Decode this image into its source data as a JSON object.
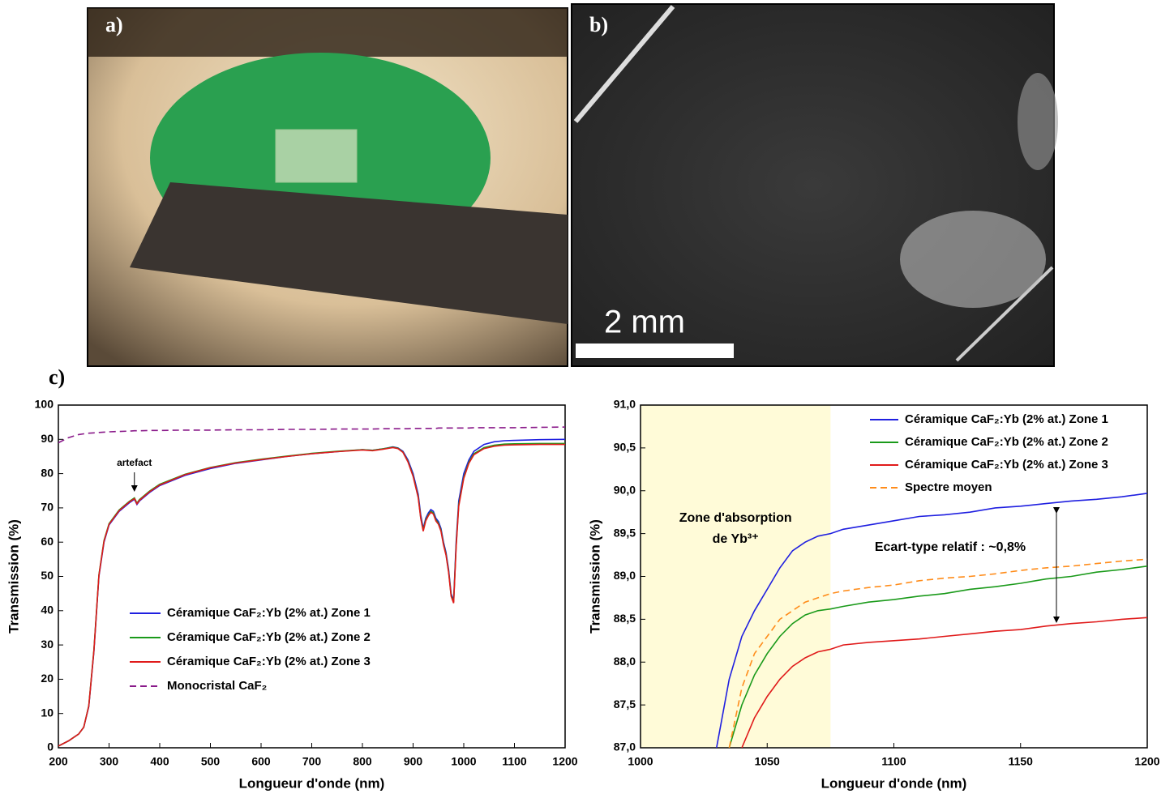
{
  "panels": {
    "a": "a)",
    "b": "b)",
    "c": "c)",
    "scale_bar": "2 mm"
  },
  "chart_data": [
    {
      "type": "line",
      "xlabel": "Longueur d'onde (nm)",
      "ylabel": "Transmission (%)",
      "x": [
        200,
        220,
        240,
        250,
        260,
        270,
        280,
        290,
        300,
        320,
        340,
        350,
        355,
        360,
        380,
        400,
        450,
        500,
        550,
        600,
        650,
        700,
        750,
        800,
        820,
        840,
        860,
        870,
        880,
        890,
        900,
        910,
        915,
        920,
        925,
        930,
        935,
        940,
        945,
        950,
        955,
        960,
        965,
        970,
        975,
        980,
        985,
        990,
        1000,
        1010,
        1020,
        1040,
        1060,
        1080,
        1100,
        1150,
        1200
      ],
      "xlim": [
        200,
        1200
      ],
      "xticks": [
        200,
        300,
        400,
        500,
        600,
        700,
        800,
        900,
        1000,
        1100,
        1200
      ],
      "ylim": [
        0,
        100
      ],
      "yticks": [
        0,
        10,
        20,
        30,
        40,
        50,
        60,
        70,
        80,
        90,
        100
      ],
      "legend": "lower-left",
      "annotation": "artefact",
      "series": [
        {
          "name": "Céramique CaF₂:Yb (2% at.) Zone 1",
          "color": "#1f1fe0",
          "style": "solid",
          "values": [
            0.5,
            2,
            4,
            6,
            12,
            28,
            50,
            60,
            65,
            69,
            71.5,
            72.5,
            71,
            72,
            74.5,
            76.5,
            79.5,
            81.5,
            83,
            84,
            85,
            85.8,
            86.4,
            87,
            86.8,
            87.2,
            87.8,
            87.5,
            86.5,
            84,
            80,
            74,
            68,
            64,
            67,
            68.5,
            69.5,
            69,
            67,
            66,
            64,
            60,
            57,
            52,
            45,
            43,
            60,
            72,
            80,
            84,
            86.5,
            88.5,
            89.3,
            89.6,
            89.7,
            89.9,
            90
          ]
        },
        {
          "name": "Céramique CaF₂:Yb (2% at.) Zone 2",
          "color": "#1a9a1a",
          "style": "solid",
          "values": [
            0.5,
            2,
            4,
            6,
            12.3,
            28.5,
            50.5,
            60.5,
            65.4,
            69.4,
            71.9,
            72.9,
            71.4,
            72.4,
            74.9,
            76.9,
            79.8,
            81.8,
            83.2,
            84.2,
            85.1,
            85.9,
            86.5,
            87,
            86.8,
            87.2,
            87.7,
            87.4,
            86.3,
            83.6,
            79.4,
            73.3,
            67.2,
            63.5,
            66.5,
            68,
            69,
            68.5,
            66.5,
            65.5,
            63.5,
            59.5,
            56.5,
            51.5,
            44.5,
            42.5,
            59,
            71,
            79,
            83.3,
            85.8,
            87.6,
            88.3,
            88.6,
            88.7,
            88.8,
            88.8
          ]
        },
        {
          "name": "Céramique CaF₂:Yb (2% at.) Zone 3",
          "color": "#e01a1a",
          "style": "solid",
          "values": [
            0.5,
            2,
            4,
            6,
            12.2,
            28.3,
            50.3,
            60.3,
            65.2,
            69.2,
            71.7,
            72.7,
            71.2,
            72.2,
            74.7,
            76.7,
            79.7,
            81.7,
            83.1,
            84.1,
            85,
            85.8,
            86.4,
            86.9,
            86.7,
            87.1,
            87.6,
            87.3,
            86.2,
            83.4,
            79.2,
            73,
            67,
            63.2,
            66.2,
            67.7,
            68.7,
            68.2,
            66.2,
            65.2,
            63.2,
            59.2,
            56.2,
            51.2,
            44.2,
            42.2,
            58.5,
            70.5,
            78.6,
            83,
            85.5,
            87.3,
            88,
            88.3,
            88.4,
            88.5,
            88.5
          ]
        },
        {
          "name": "Monocristal CaF₂",
          "color": "#8a1a8a",
          "style": "dashed",
          "values": [
            89,
            90.5,
            91.4,
            91.6,
            91.8,
            91.9,
            92,
            92.1,
            92.2,
            92.3,
            92.4,
            92.5,
            92.5,
            92.5,
            92.6,
            92.6,
            92.7,
            92.7,
            92.8,
            92.8,
            92.9,
            92.9,
            93,
            93,
            93,
            93.1,
            93.1,
            93.1,
            93.1,
            93.1,
            93.2,
            93.2,
            93.2,
            93.2,
            93.2,
            93.2,
            93.2,
            93.2,
            93.2,
            93.3,
            93.3,
            93.3,
            93.3,
            93.3,
            93.3,
            93.3,
            93.3,
            93.3,
            93.3,
            93.3,
            93.4,
            93.4,
            93.4,
            93.4,
            93.4,
            93.5,
            93.6
          ]
        }
      ]
    },
    {
      "type": "line",
      "xlabel": "Longueur d'onde (nm)",
      "ylabel": "Transmission (%)",
      "x": [
        1030,
        1035,
        1040,
        1045,
        1050,
        1055,
        1060,
        1065,
        1070,
        1075,
        1080,
        1090,
        1100,
        1110,
        1120,
        1130,
        1140,
        1150,
        1160,
        1170,
        1180,
        1190,
        1200
      ],
      "xlim": [
        1000,
        1200
      ],
      "xticks": [
        1000,
        1050,
        1100,
        1150,
        1200
      ],
      "ylim": [
        87,
        91
      ],
      "yticks": [
        {
          "value": 87,
          "label": "87,0"
        },
        {
          "value": 87.5,
          "label": "87,5"
        },
        {
          "value": 88,
          "label": "88,0"
        },
        {
          "value": 88.5,
          "label": "88,5"
        },
        {
          "value": 89,
          "label": "89,0"
        },
        {
          "value": 89.5,
          "label": "89,5"
        },
        {
          "value": 90,
          "label": "90,0"
        },
        {
          "value": 90.5,
          "label": "90,5"
        },
        {
          "value": 91,
          "label": "91,0"
        }
      ],
      "legend": "upper-right",
      "shaded_region": {
        "x": [
          1000,
          1075
        ],
        "color": "#fffbd8",
        "label_line1": "Zone d'absorption",
        "label_line2": "de Yb³⁺"
      },
      "annotation": "Ecart-type relatif : ~0,8%",
      "series": [
        {
          "name": "Céramique CaF₂:Yb (2% at.) Zone 1",
          "color": "#1f1fe0",
          "style": "solid",
          "values": [
            87,
            87.8,
            88.3,
            88.6,
            88.85,
            89.1,
            89.3,
            89.4,
            89.47,
            89.5,
            89.55,
            89.6,
            89.65,
            89.7,
            89.72,
            89.75,
            89.8,
            89.82,
            89.85,
            89.88,
            89.9,
            89.93,
            89.97
          ]
        },
        {
          "name": "Céramique CaF₂:Yb (2% at.) Zone 2",
          "color": "#1a9a1a",
          "style": "solid",
          "values": [
            null,
            87,
            87.5,
            87.85,
            88.1,
            88.3,
            88.45,
            88.55,
            88.6,
            88.62,
            88.65,
            88.7,
            88.73,
            88.77,
            88.8,
            88.85,
            88.88,
            88.92,
            88.97,
            89,
            89.05,
            89.08,
            89.12
          ]
        },
        {
          "name": "Céramique CaF₂:Yb (2% at.) Zone 3",
          "color": "#e01a1a",
          "style": "solid",
          "values": [
            null,
            null,
            87,
            87.35,
            87.6,
            87.8,
            87.95,
            88.05,
            88.12,
            88.15,
            88.2,
            88.23,
            88.25,
            88.27,
            88.3,
            88.33,
            88.36,
            88.38,
            88.42,
            88.45,
            88.47,
            88.5,
            88.52
          ]
        },
        {
          "name": "Spectre moyen",
          "color": "#ff8c1a",
          "style": "dashed",
          "values": [
            null,
            87,
            87.7,
            88.1,
            88.3,
            88.5,
            88.6,
            88.7,
            88.75,
            88.8,
            88.83,
            88.87,
            88.9,
            88.95,
            88.98,
            89,
            89.03,
            89.07,
            89.1,
            89.12,
            89.15,
            89.18,
            89.2
          ]
        }
      ]
    }
  ]
}
